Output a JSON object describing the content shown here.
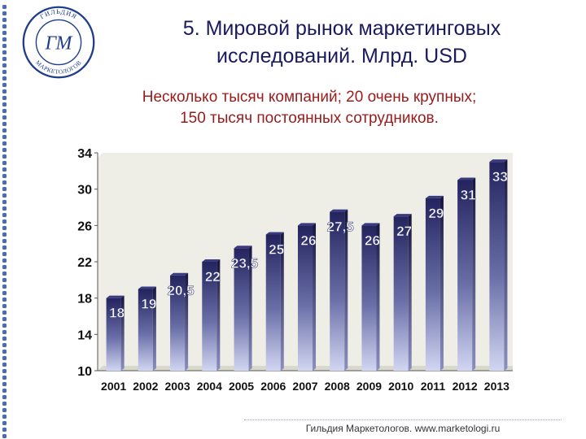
{
  "slide": {
    "title_line1": "5. Мировой рынок маркетинговых",
    "title_line2": "исследований. Млрд. USD",
    "subtitle_line1": "Несколько тысяч компаний; 20 очень крупных;",
    "subtitle_line2": "150 тысяч постоянных сотрудников.",
    "footer": "Гильдия Маркетологов. www.marketologi.ru",
    "logo": {
      "text_top": "ГИЛЬДИЯ",
      "text_bottom": "МАРКЕТОЛОГОВ",
      "monogram": "ГМ"
    }
  },
  "colors": {
    "title": "#1a1a5e",
    "subtitle": "#9b1b1b",
    "bar_light": "#d2d6f2",
    "bar_dark": "#23235e",
    "plot_bg": "#eeeee6",
    "side_dots": "#4a6bb5",
    "logo": "#1f3d8a"
  },
  "chart_data": {
    "type": "bar",
    "categories": [
      "2001",
      "2002",
      "2003",
      "2004",
      "2005",
      "2006",
      "2007",
      "2008",
      "2009",
      "2010",
      "2011",
      "2012",
      "2013"
    ],
    "values": [
      18,
      19,
      20.5,
      22,
      23.5,
      25,
      26,
      27.5,
      26,
      27,
      29,
      31,
      33
    ],
    "data_labels": [
      "18",
      "19",
      "20,5",
      "22",
      "23,5",
      "25",
      "26",
      "27,5",
      "26",
      "27",
      "29",
      "31",
      "33"
    ],
    "ylim": [
      10,
      34
    ],
    "yticks": [
      10,
      14,
      18,
      22,
      26,
      30,
      34
    ],
    "ytick_labels": [
      "10",
      "14",
      "18",
      "22",
      "26",
      "30",
      "34"
    ],
    "title": "",
    "xlabel": "",
    "ylabel": "",
    "grid": false,
    "legend": "none"
  }
}
